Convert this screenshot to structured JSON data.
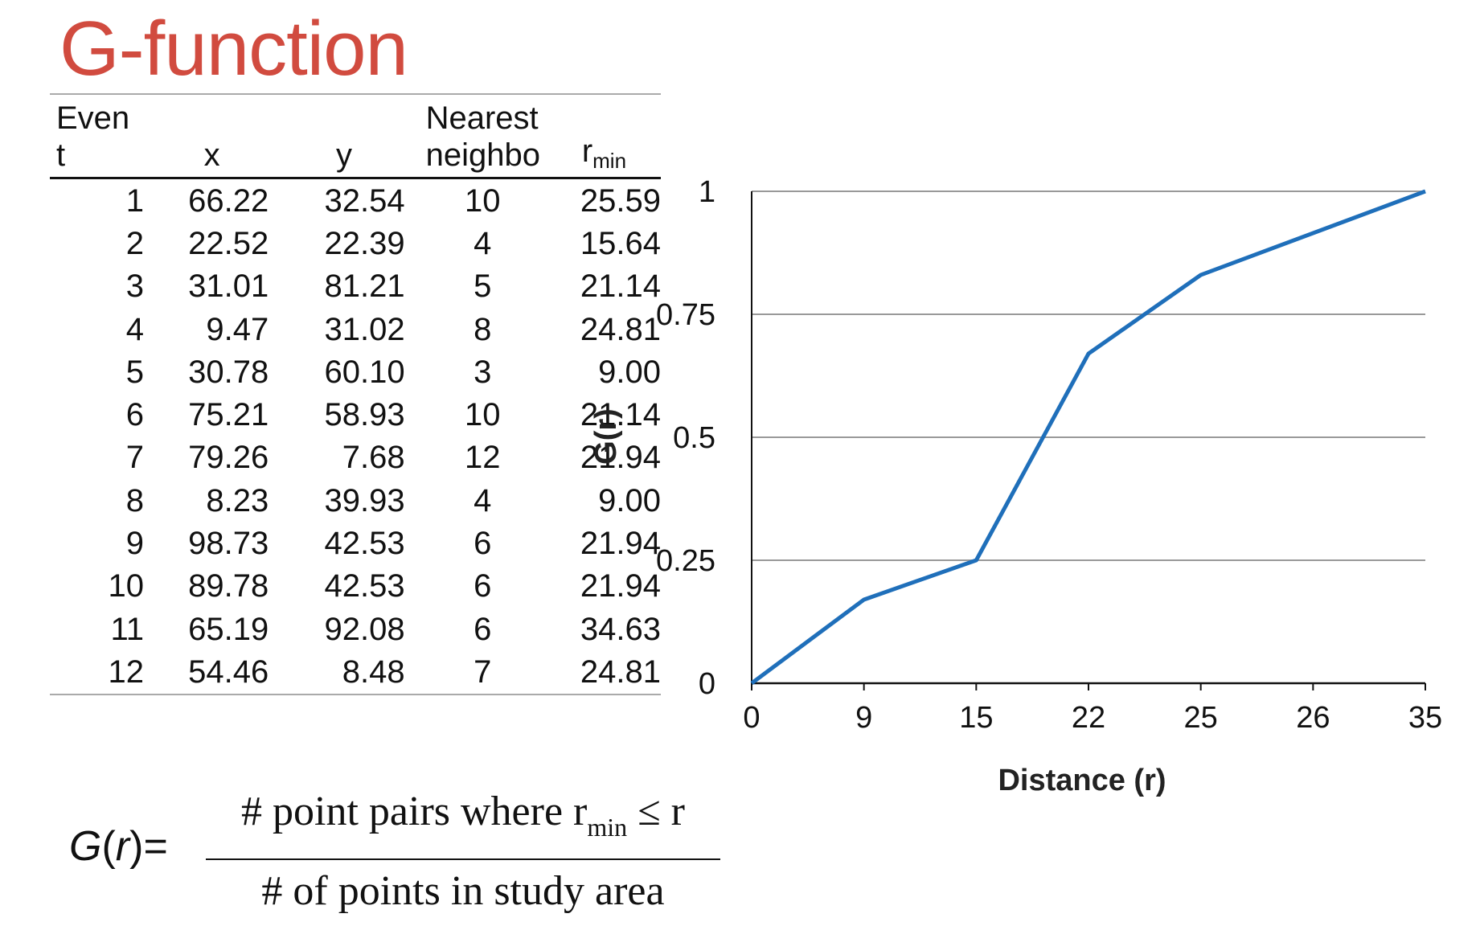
{
  "title": "G-function",
  "table": {
    "headers": {
      "event": [
        "Even",
        "t"
      ],
      "x": "x",
      "y": "y",
      "nearest": [
        "Nearest",
        "neighbo"
      ],
      "rmin_base": "r",
      "rmin_sub": "min"
    },
    "rows": [
      {
        "event": "1",
        "x": "66.22",
        "y": "32.54",
        "nn": "10",
        "rmin": "25.59"
      },
      {
        "event": "2",
        "x": "22.52",
        "y": "22.39",
        "nn": "4",
        "rmin": "15.64"
      },
      {
        "event": "3",
        "x": "31.01",
        "y": "81.21",
        "nn": "5",
        "rmin": "21.14"
      },
      {
        "event": "4",
        "x": "9.47",
        "y": "31.02",
        "nn": "8",
        "rmin": "24.81"
      },
      {
        "event": "5",
        "x": "30.78",
        "y": "60.10",
        "nn": "3",
        "rmin": "9.00"
      },
      {
        "event": "6",
        "x": "75.21",
        "y": "58.93",
        "nn": "10",
        "rmin": "21.14"
      },
      {
        "event": "7",
        "x": "79.26",
        "y": "7.68",
        "nn": "12",
        "rmin": "21.94"
      },
      {
        "event": "8",
        "x": "8.23",
        "y": "39.93",
        "nn": "4",
        "rmin": "9.00"
      },
      {
        "event": "9",
        "x": "98.73",
        "y": "42.53",
        "nn": "6",
        "rmin": "21.94"
      },
      {
        "event": "10",
        "x": "89.78",
        "y": "42.53",
        "nn": "6",
        "rmin": "21.94"
      },
      {
        "event": "11",
        "x": "65.19",
        "y": "92.08",
        "nn": "6",
        "rmin": "34.63"
      },
      {
        "event": "12",
        "x": "54.46",
        "y": "8.48",
        "nn": "7",
        "rmin": "24.81"
      }
    ]
  },
  "chart_data": {
    "type": "line",
    "title": "",
    "xlabel": "Distance (r)",
    "ylabel": "G(r)",
    "x_categories": [
      "0",
      "9",
      "15",
      "22",
      "25",
      "26",
      "35"
    ],
    "y_ticks": [
      "0",
      "0.25",
      "0.5",
      "0.75",
      "1"
    ],
    "ylim": [
      0,
      1
    ],
    "grid": true,
    "legend": "none",
    "series": [
      {
        "color": "#1f6fba",
        "points": [
          {
            "x": "0",
            "y": 0
          },
          {
            "x": "9",
            "y": 0.17
          },
          {
            "x": "15",
            "y": 0.25
          },
          {
            "x": "22",
            "y": 0.67
          },
          {
            "x": "25",
            "y": 0.83
          },
          {
            "x": "35",
            "y": 1
          }
        ]
      }
    ]
  },
  "formula": {
    "lhs_g": "G",
    "lhs_open": "(",
    "lhs_r": "r",
    "lhs_close": ")",
    "equals": "=",
    "numerator_pre": "# point pairs where r",
    "numerator_sub": "min",
    "numerator_post": " ≤  r",
    "denominator": "# of points in study area"
  }
}
